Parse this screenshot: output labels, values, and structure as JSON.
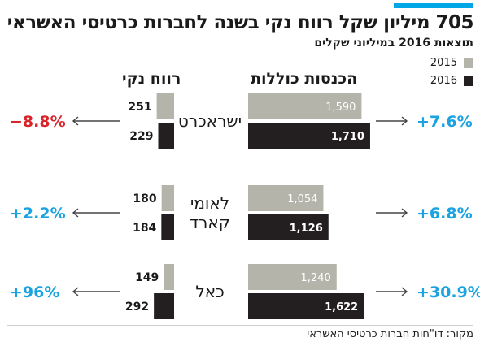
{
  "header": {
    "title": "705 מיליון שקל רווח נקי בשנה לחברות כרטיסי האשראי",
    "subtitle": "תוצאות 2016 במיליוני שקלים"
  },
  "legend": [
    {
      "label": "2015",
      "color": "#b4b4ab"
    },
    {
      "label": "2016",
      "color": "#231f20"
    }
  ],
  "columns": {
    "net_profit": "רווח נקי",
    "total_revenue": "הכנסות כוללות"
  },
  "source": "מקור: דו\"חות חברות כרטיסי האשראי",
  "colors": {
    "bar_2015": "#b4b4ab",
    "bar_2016": "#231f20",
    "positive": "#1aa3e0",
    "negative": "#d8252c",
    "arrow": "#444444"
  },
  "chart_data": {
    "type": "bar",
    "categories": [
      "ישראכרט",
      "לאומי קארד",
      "כאל"
    ],
    "series": [
      {
        "name": "2015",
        "revenue": [
          1590,
          1054,
          1240
        ],
        "profit": [
          251,
          180,
          149
        ]
      },
      {
        "name": "2016",
        "revenue": [
          1710,
          1126,
          1622
        ],
        "profit": [
          229,
          184,
          292
        ]
      }
    ],
    "revenue_labels_2015": [
      "1,590",
      "1,054",
      "1,240"
    ],
    "revenue_labels_2016": [
      "1,710",
      "1,126",
      "1,622"
    ],
    "profit_labels_2015": [
      "251",
      "180",
      "149"
    ],
    "profit_labels_2016": [
      "229",
      "184",
      "292"
    ],
    "revenue_change": [
      "+7.6%",
      "+6.8%",
      "+30.9%"
    ],
    "profit_change": [
      "−8.8%",
      "+2.2%",
      "+96%"
    ],
    "profit_change_sign": [
      "negative",
      "positive",
      "positive"
    ],
    "company_label_lines": [
      [
        "ישראכרט"
      ],
      [
        "לאומי",
        "קארד"
      ],
      [
        "כאל"
      ]
    ]
  }
}
